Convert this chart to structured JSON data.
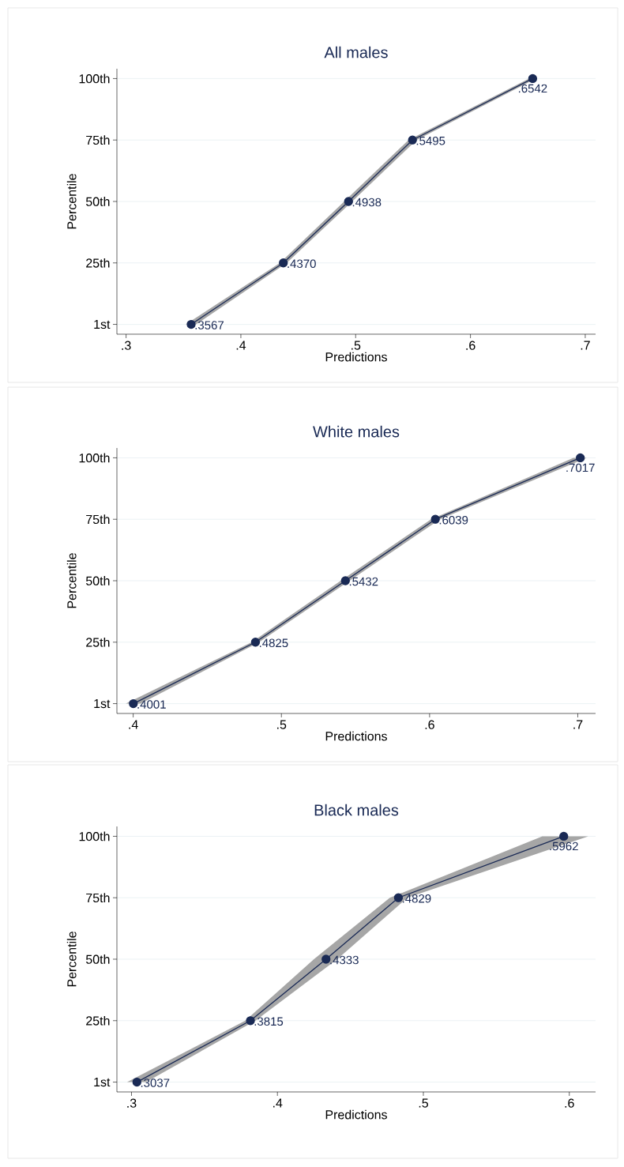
{
  "chart_data": [
    {
      "type": "line",
      "title": "All males",
      "xlabel": "Predictions",
      "ylabel": "Percentile",
      "orientation": "horizontal",
      "categories": [
        "100th",
        "75th",
        "50th",
        "25th",
        "1st"
      ],
      "series": [
        {
          "color": "#1a2a55",
          "values": [
            0.6542,
            0.5495,
            0.4938,
            0.437,
            0.3567
          ],
          "lower": [
            0.651,
            0.546,
            0.49,
            0.434,
            0.352
          ],
          "upper": [
            0.657,
            0.553,
            0.497,
            0.44,
            0.361
          ],
          "value_labels": [
            ".6542",
            ".5495",
            ".4938",
            ".4370",
            ".3567"
          ]
        }
      ],
      "xlim": [
        0.292,
        0.709
      ],
      "xticks": [
        {
          "value": 0.3,
          "label": ".3"
        },
        {
          "value": 0.4,
          "label": ".4"
        },
        {
          "value": 0.5,
          "label": ".5"
        },
        {
          "value": 0.6,
          "label": ".6"
        },
        {
          "value": 0.7,
          "label": ".7"
        }
      ],
      "grid": "y",
      "marker": "circle"
    },
    {
      "type": "line",
      "title": "White males",
      "xlabel": "Predictions",
      "ylabel": "Percentile",
      "orientation": "horizontal",
      "categories": [
        "100th",
        "75th",
        "50th",
        "25th",
        "1st"
      ],
      "series": [
        {
          "color": "#1a2a55",
          "values": [
            0.7017,
            0.6039,
            0.5432,
            0.4825,
            0.4001
          ],
          "lower": [
            0.697,
            0.601,
            0.54,
            0.48,
            0.395
          ],
          "upper": [
            0.706,
            0.607,
            0.546,
            0.485,
            0.405
          ],
          "value_labels": [
            ".7017",
            ".6039",
            ".5432",
            ".4825",
            ".4001"
          ]
        }
      ],
      "xlim": [
        0.389,
        0.712
      ],
      "xticks": [
        {
          "value": 0.4,
          "label": ".4"
        },
        {
          "value": 0.5,
          "label": ".5"
        },
        {
          "value": 0.6,
          "label": ".6"
        },
        {
          "value": 0.7,
          "label": ".7"
        }
      ],
      "grid": "y",
      "marker": "circle"
    },
    {
      "type": "line",
      "title": "Black males",
      "xlabel": "Predictions",
      "ylabel": "Percentile",
      "orientation": "horizontal",
      "categories": [
        "100th",
        "75th",
        "50th",
        "25th",
        "1st"
      ],
      "series": [
        {
          "color": "#1a2a55",
          "values": [
            0.5962,
            0.4829,
            0.4333,
            0.3815,
            0.3037
          ],
          "lower": [
            0.5815,
            0.477,
            0.425,
            0.378,
            0.297
          ],
          "upper": [
            0.613,
            0.489,
            0.441,
            0.385,
            0.31
          ],
          "value_labels": [
            ".5962",
            ".4829",
            ".4333",
            ".3815",
            ".3037"
          ]
        }
      ],
      "xlim": [
        0.29,
        0.618
      ],
      "xticks": [
        {
          "value": 0.3,
          "label": ".3"
        },
        {
          "value": 0.4,
          "label": ".4"
        },
        {
          "value": 0.5,
          "label": ".5"
        },
        {
          "value": 0.6,
          "label": ".6"
        }
      ],
      "grid": "y",
      "marker": "circle"
    }
  ]
}
